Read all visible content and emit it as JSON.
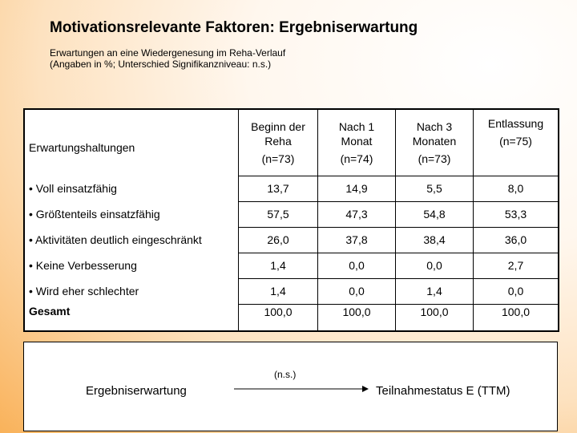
{
  "title": "Motivationsrelevante Faktoren: Ergebniserwartung",
  "subtitle_line1": "Erwartungen an eine Wiedergenesung im Reha-Verlauf",
  "subtitle_line2": "(Angaben in %; Unterschied Signifikanzniveau: n.s.)",
  "table": {
    "row_header": "Erwartungshaltungen",
    "columns": [
      {
        "line1": "Beginn der",
        "line2": "Reha",
        "n": "(n=73)"
      },
      {
        "line1": "Nach 1",
        "line2": "Monat",
        "n": "(n=74)"
      },
      {
        "line1": "Nach 3",
        "line2": "Monaten",
        "n": "(n=73)"
      },
      {
        "line1": "Entlassung",
        "line2": "",
        "n": "(n=75)"
      }
    ],
    "rows": [
      {
        "label": "• Voll einsatzfähig",
        "values": [
          "13,7",
          "14,9",
          "5,5",
          "8,0"
        ]
      },
      {
        "label": "• Größtenteils einsatzfähig",
        "values": [
          "57,5",
          "47,3",
          "54,8",
          "53,3"
        ]
      },
      {
        "label": "• Aktivitäten deutlich eingeschränkt",
        "values": [
          "26,0",
          "37,8",
          "38,4",
          "36,0"
        ]
      },
      {
        "label": "• Keine Verbesserung",
        "values": [
          "1,4",
          "0,0",
          "0,0",
          "2,7"
        ]
      },
      {
        "label": "• Wird eher schlechter",
        "values": [
          "1,4",
          "0,0",
          "1,4",
          "0,0"
        ]
      },
      {
        "label": "Gesamt",
        "values": [
          "100,0",
          "100,0",
          "100,0",
          "100,0"
        ]
      }
    ]
  },
  "diagram": {
    "left_label": "Ergebniserwartung",
    "right_label": "Teilnahmestatus E (TTM)",
    "arrow_label": "(n.s.)"
  }
}
